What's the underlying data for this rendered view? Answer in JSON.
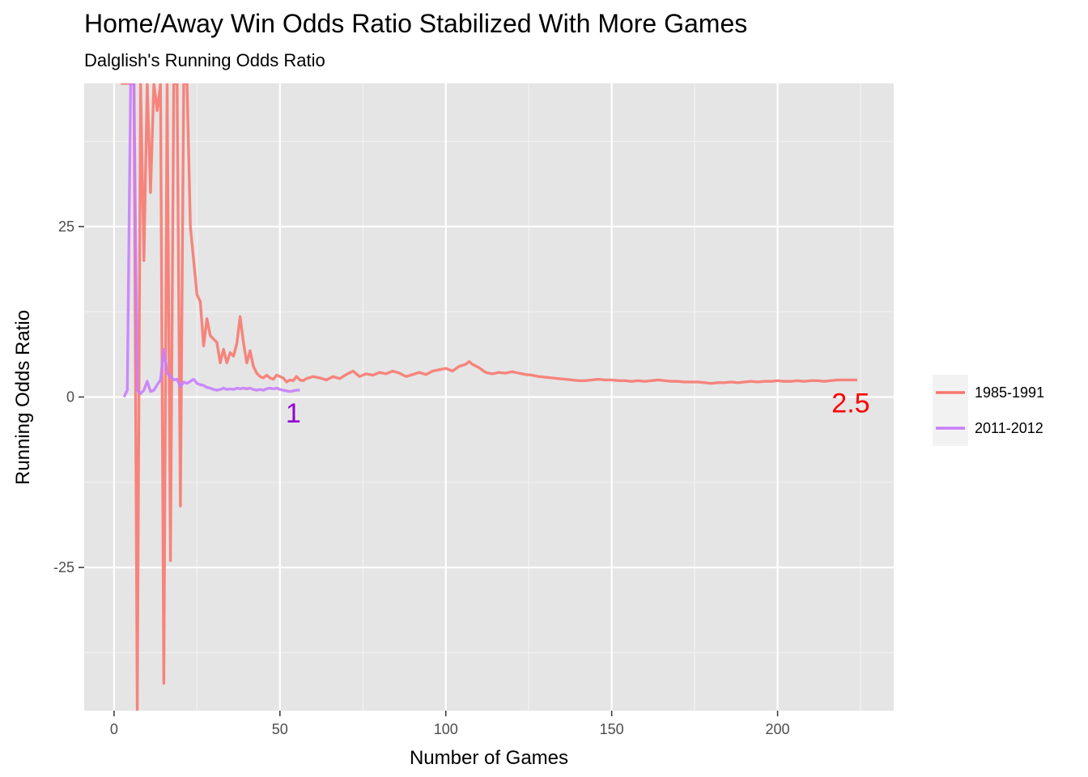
{
  "chart_data": {
    "type": "line",
    "title": "Home/Away Win Odds Ratio Stabilized With More Games",
    "subtitle": "Dalglish's Running Odds Ratio",
    "xlabel": "Number of Games",
    "ylabel": "Running Odds Ratio",
    "xlim": [
      -9,
      235
    ],
    "ylim": [
      -46,
      46
    ],
    "x_ticks": [
      {
        "value": 0,
        "label": "0"
      },
      {
        "value": 50,
        "label": "50"
      },
      {
        "value": 100,
        "label": "100"
      },
      {
        "value": 150,
        "label": "150"
      },
      {
        "value": 200,
        "label": "200"
      }
    ],
    "y_ticks": [
      {
        "value": -25,
        "label": "-25"
      },
      {
        "value": 0,
        "label": "0"
      },
      {
        "value": 25,
        "label": "25"
      }
    ],
    "grid": true,
    "legend_position": "right",
    "series": [
      {
        "name": "1985-1991",
        "color": "#f8766d",
        "end_label": "2.5",
        "end_label_color": "#ff0000",
        "points": [
          [
            2,
            46
          ],
          [
            3,
            46
          ],
          [
            4,
            46
          ],
          [
            5,
            46
          ],
          [
            6,
            46
          ],
          [
            7,
            -46
          ],
          [
            8,
            46
          ],
          [
            9,
            20
          ],
          [
            10,
            46
          ],
          [
            11,
            30
          ],
          [
            12,
            46
          ],
          [
            13,
            42
          ],
          [
            14,
            46
          ],
          [
            15,
            -42
          ],
          [
            16,
            46
          ],
          [
            17,
            -24
          ],
          [
            18,
            46
          ],
          [
            19,
            46
          ],
          [
            20,
            -16
          ],
          [
            21,
            46
          ],
          [
            22,
            46
          ],
          [
            23,
            25
          ],
          [
            24,
            20
          ],
          [
            25,
            15
          ],
          [
            26,
            14
          ],
          [
            27,
            7.5
          ],
          [
            28,
            11.5
          ],
          [
            29,
            9
          ],
          [
            30,
            8.5
          ],
          [
            31,
            8
          ],
          [
            32,
            5
          ],
          [
            33,
            7
          ],
          [
            34,
            5
          ],
          [
            35,
            6.5
          ],
          [
            36,
            6
          ],
          [
            37,
            7.8
          ],
          [
            38,
            11.8
          ],
          [
            39,
            8
          ],
          [
            40,
            5
          ],
          [
            41,
            6.8
          ],
          [
            42,
            4.5
          ],
          [
            43,
            3.5
          ],
          [
            44,
            3
          ],
          [
            45,
            2.8
          ],
          [
            46,
            3.2
          ],
          [
            47,
            2.8
          ],
          [
            48,
            2.6
          ],
          [
            49,
            3.2
          ],
          [
            50,
            3
          ],
          [
            51,
            2.8
          ],
          [
            52,
            2.2
          ],
          [
            53,
            2.5
          ],
          [
            54,
            2.4
          ],
          [
            55,
            3
          ],
          [
            56,
            2.5
          ],
          [
            57,
            2.4
          ],
          [
            58,
            2.7
          ],
          [
            60,
            3
          ],
          [
            62,
            2.8
          ],
          [
            64,
            2.5
          ],
          [
            66,
            3
          ],
          [
            68,
            2.7
          ],
          [
            70,
            3.3
          ],
          [
            72,
            3.8
          ],
          [
            74,
            3
          ],
          [
            76,
            3.4
          ],
          [
            78,
            3.2
          ],
          [
            80,
            3.6
          ],
          [
            82,
            3.4
          ],
          [
            84,
            3.8
          ],
          [
            86,
            3.5
          ],
          [
            88,
            3
          ],
          [
            90,
            3.3
          ],
          [
            92,
            3.6
          ],
          [
            94,
            3.3
          ],
          [
            96,
            3.8
          ],
          [
            98,
            4
          ],
          [
            100,
            4.2
          ],
          [
            102,
            3.8
          ],
          [
            104,
            4.5
          ],
          [
            106,
            4.8
          ],
          [
            107,
            5.2
          ],
          [
            108,
            4.8
          ],
          [
            110,
            4.3
          ],
          [
            112,
            3.6
          ],
          [
            114,
            3.4
          ],
          [
            116,
            3.6
          ],
          [
            118,
            3.5
          ],
          [
            120,
            3.7
          ],
          [
            122,
            3.5
          ],
          [
            124,
            3.3
          ],
          [
            126,
            3.2
          ],
          [
            128,
            3
          ],
          [
            130,
            2.9
          ],
          [
            132,
            2.8
          ],
          [
            134,
            2.7
          ],
          [
            136,
            2.6
          ],
          [
            138,
            2.5
          ],
          [
            140,
            2.4
          ],
          [
            142,
            2.4
          ],
          [
            144,
            2.5
          ],
          [
            146,
            2.6
          ],
          [
            148,
            2.5
          ],
          [
            150,
            2.5
          ],
          [
            152,
            2.4
          ],
          [
            154,
            2.4
          ],
          [
            156,
            2.3
          ],
          [
            158,
            2.4
          ],
          [
            160,
            2.3
          ],
          [
            162,
            2.4
          ],
          [
            164,
            2.5
          ],
          [
            166,
            2.4
          ],
          [
            168,
            2.3
          ],
          [
            170,
            2.3
          ],
          [
            172,
            2.2
          ],
          [
            174,
            2.2
          ],
          [
            176,
            2.2
          ],
          [
            178,
            2.1
          ],
          [
            180,
            2
          ],
          [
            182,
            2.1
          ],
          [
            184,
            2.1
          ],
          [
            186,
            2.2
          ],
          [
            188,
            2.1
          ],
          [
            190,
            2.2
          ],
          [
            192,
            2.3
          ],
          [
            194,
            2.2
          ],
          [
            196,
            2.3
          ],
          [
            198,
            2.3
          ],
          [
            200,
            2.4
          ],
          [
            202,
            2.3
          ],
          [
            204,
            2.3
          ],
          [
            206,
            2.4
          ],
          [
            208,
            2.3
          ],
          [
            210,
            2.4
          ],
          [
            212,
            2.4
          ],
          [
            214,
            2.3
          ],
          [
            216,
            2.4
          ],
          [
            218,
            2.5
          ],
          [
            220,
            2.5
          ],
          [
            222,
            2.5
          ],
          [
            224,
            2.5
          ]
        ]
      },
      {
        "name": "2011-2012",
        "color": "#c77cff",
        "end_label": "1",
        "end_label_color": "#9400d3",
        "points": [
          [
            3,
            0
          ],
          [
            4,
            1
          ],
          [
            5,
            46
          ],
          [
            6,
            46
          ],
          [
            7,
            1
          ],
          [
            8,
            0.5
          ],
          [
            9,
            1
          ],
          [
            10,
            2.3
          ],
          [
            11,
            0.8
          ],
          [
            12,
            1
          ],
          [
            13,
            1.8
          ],
          [
            14,
            2.5
          ],
          [
            15,
            7
          ],
          [
            16,
            3.5
          ],
          [
            17,
            3
          ],
          [
            18,
            2.5
          ],
          [
            19,
            2.6
          ],
          [
            20,
            1.5
          ],
          [
            21,
            2.2
          ],
          [
            22,
            2
          ],
          [
            23,
            2.3
          ],
          [
            24,
            2.6
          ],
          [
            25,
            2
          ],
          [
            26,
            1.8
          ],
          [
            27,
            1.7
          ],
          [
            28,
            1.4
          ],
          [
            29,
            1.3
          ],
          [
            30,
            1.1
          ],
          [
            31,
            1.0
          ],
          [
            32,
            1.1
          ],
          [
            33,
            1.3
          ],
          [
            34,
            1.1
          ],
          [
            35,
            1.2
          ],
          [
            36,
            1.1
          ],
          [
            37,
            1.3
          ],
          [
            38,
            1.2
          ],
          [
            39,
            1.3
          ],
          [
            40,
            1.2
          ],
          [
            41,
            1.3
          ],
          [
            42,
            1.1
          ],
          [
            43,
            1.0
          ],
          [
            44,
            1.1
          ],
          [
            45,
            1.0
          ],
          [
            46,
            1.2
          ],
          [
            47,
            1.3
          ],
          [
            48,
            1.2
          ],
          [
            49,
            1.3
          ],
          [
            50,
            1.1
          ],
          [
            51,
            1.0
          ],
          [
            52,
            0.9
          ],
          [
            53,
            0.8
          ],
          [
            54,
            0.9
          ],
          [
            55,
            1.0
          ],
          [
            56,
            1.0
          ]
        ]
      }
    ]
  }
}
